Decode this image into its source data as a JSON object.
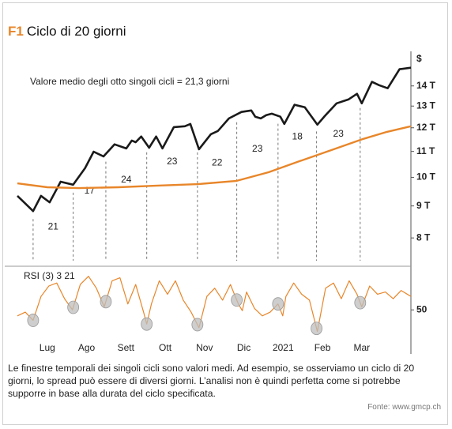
{
  "header": {
    "label": "F1",
    "title": "Ciclo di 20 giorni"
  },
  "chart_data": [
    {
      "type": "line",
      "annotation": "Valore medio degli otto singoli cicli = 21,3 giorni",
      "y_unit": "$",
      "ylog": true,
      "xlim": [
        -0.76,
        9.25
      ],
      "ylim": [
        7.25,
        15.9
      ],
      "yticks": [
        {
          "value": 8,
          "label": "8 T"
        },
        {
          "value": 9,
          "label": "9 T"
        },
        {
          "value": 10,
          "label": "10 T"
        },
        {
          "value": 11,
          "label": "11 T"
        },
        {
          "value": 12,
          "label": "12 T"
        },
        {
          "value": 13,
          "label": "13 T"
        },
        {
          "value": 14,
          "label": "14 T"
        }
      ],
      "series": [
        {
          "color": "#1a1a1a",
          "x": [
            -0.76,
            -0.36,
            -0.16,
            0.06,
            0.34,
            0.66,
            0.96,
            1.18,
            1.43,
            1.71,
            2.01,
            2.15,
            2.25,
            2.39,
            2.59,
            2.77,
            2.93,
            3.22,
            3.5,
            3.64,
            3.86,
            4.16,
            4.34,
            4.62,
            4.94,
            5.19,
            5.29,
            5.43,
            5.57,
            5.71,
            5.93,
            6.03,
            6.29,
            6.55,
            6.87,
            7.06,
            7.36,
            7.66,
            7.88,
            8.0,
            8.26,
            8.44,
            8.66,
            8.96,
            9.25
          ],
          "values": [
            9.34,
            8.83,
            9.34,
            9.12,
            9.84,
            9.73,
            10.34,
            10.99,
            10.8,
            11.29,
            11.12,
            11.45,
            11.38,
            11.62,
            11.15,
            11.62,
            11.12,
            12.03,
            12.07,
            12.17,
            11.09,
            11.72,
            11.86,
            12.42,
            12.72,
            12.79,
            12.5,
            12.42,
            12.57,
            12.64,
            12.5,
            12.17,
            13.06,
            12.94,
            12.14,
            12.53,
            13.13,
            13.32,
            13.6,
            13.13,
            14.21,
            14.04,
            13.88,
            14.89,
            14.97
          ]
        },
        {
          "color": "#e8862a",
          "x": [
            -0.76,
            0,
            0.8,
            1.81,
            2.81,
            3.82,
            4.82,
            5.63,
            6.43,
            7.24,
            8.04,
            8.64,
            9.25
          ],
          "values": [
            9.78,
            9.64,
            9.61,
            9.64,
            9.7,
            9.75,
            9.87,
            10.19,
            10.62,
            11.06,
            11.52,
            11.82,
            12.07
          ]
        }
      ],
      "cycles": {
        "x": [
          -0.36,
          0.66,
          1.49,
          2.53,
          3.82,
          4.82,
          5.87,
          6.85,
          7.96
        ],
        "lengths": [
          21,
          17,
          24,
          23,
          22,
          23,
          18,
          23
        ]
      }
    },
    {
      "type": "line",
      "label": "RSI (3) 3 21",
      "xlim": [
        -0.76,
        9.25
      ],
      "ylim": [
        10,
        100
      ],
      "yticks": [
        50
      ],
      "xticks": [
        {
          "value": 0,
          "label": "Lug"
        },
        {
          "value": 1,
          "label": "Ago"
        },
        {
          "value": 2,
          "label": "Sett"
        },
        {
          "value": 3,
          "label": "Ott"
        },
        {
          "value": 4,
          "label": "Nov"
        },
        {
          "value": 5,
          "label": "Dic"
        },
        {
          "value": 6,
          "label": "2021"
        },
        {
          "value": 7,
          "label": "Feb"
        },
        {
          "value": 8,
          "label": "Mar"
        }
      ],
      "marker_color": "#bdbdbd",
      "series": [
        {
          "color": "#e8862a",
          "x": [
            -0.76,
            -0.56,
            -0.36,
            -0.16,
            0.04,
            0.24,
            0.44,
            0.64,
            0.84,
            1.05,
            1.25,
            1.45,
            1.65,
            1.85,
            2.05,
            2.25,
            2.45,
            2.53,
            2.65,
            2.85,
            3.06,
            3.26,
            3.46,
            3.66,
            3.86,
            4.06,
            4.26,
            4.46,
            4.66,
            4.86,
            4.96,
            5.07,
            5.27,
            5.47,
            5.67,
            5.87,
            5.99,
            6.07,
            6.27,
            6.47,
            6.67,
            6.87,
            7.08,
            7.28,
            7.48,
            7.68,
            7.88,
            8.0,
            8.2,
            8.4,
            8.6,
            8.8,
            9.0,
            9.25
          ],
          "values": [
            42,
            47,
            36,
            68,
            82,
            86,
            65,
            50,
            84,
            95,
            79,
            54,
            89,
            93,
            58,
            84,
            47,
            31,
            58,
            89,
            71,
            89,
            63,
            47,
            26,
            68,
            79,
            63,
            84,
            58,
            49,
            74,
            52,
            42,
            47,
            58,
            42,
            68,
            86,
            71,
            63,
            21,
            79,
            86,
            65,
            89,
            71,
            54,
            82,
            71,
            74,
            65,
            76,
            68
          ]
        }
      ]
    }
  ],
  "caption": "Le finestre temporali dei singoli cicli sono valori medi. Ad esempio, se osserviamo un ciclo di 20 giorni, lo spread può essere di diversi giorni. L’analisi non è quindi perfetta come si potrebbe supporre in base alla durata del ciclo specificata.",
  "source": "Fonte: www.gmcp.ch"
}
